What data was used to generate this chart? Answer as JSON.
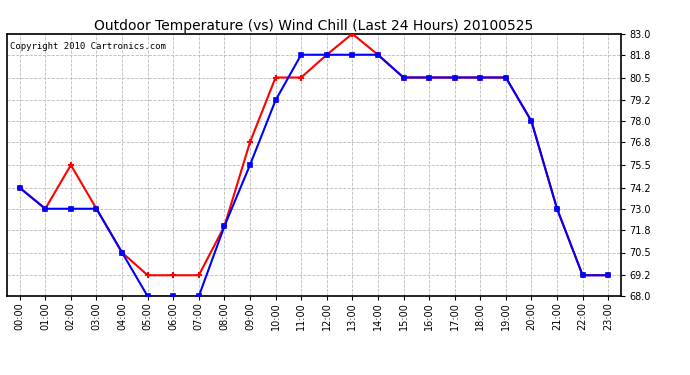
{
  "title": "Outdoor Temperature (vs) Wind Chill (Last 24 Hours) 20100525",
  "copyright": "Copyright 2010 Cartronics.com",
  "hours": [
    "00:00",
    "01:00",
    "02:00",
    "03:00",
    "04:00",
    "05:00",
    "06:00",
    "07:00",
    "08:00",
    "09:00",
    "10:00",
    "11:00",
    "12:00",
    "13:00",
    "14:00",
    "15:00",
    "16:00",
    "17:00",
    "18:00",
    "19:00",
    "20:00",
    "21:00",
    "22:00",
    "23:00"
  ],
  "outdoor_temp": [
    74.2,
    73.0,
    75.5,
    73.0,
    70.5,
    69.2,
    69.2,
    69.2,
    72.0,
    76.8,
    80.5,
    80.5,
    81.8,
    83.0,
    81.8,
    80.5,
    80.5,
    80.5,
    80.5,
    80.5,
    78.0,
    73.0,
    69.2,
    69.2
  ],
  "wind_chill": [
    74.2,
    73.0,
    73.0,
    73.0,
    70.5,
    68.0,
    68.0,
    68.0,
    72.0,
    75.5,
    79.2,
    81.8,
    81.8,
    81.8,
    81.8,
    80.5,
    80.5,
    80.5,
    80.5,
    80.5,
    78.0,
    73.0,
    69.2,
    69.2
  ],
  "temp_color": "#ff0000",
  "chill_color": "#0000ff",
  "ylim": [
    68.0,
    83.0
  ],
  "yticks": [
    68.0,
    69.2,
    70.5,
    71.8,
    73.0,
    74.2,
    75.5,
    76.8,
    78.0,
    79.2,
    80.5,
    81.8,
    83.0
  ],
  "background_color": "#ffffff",
  "plot_bg": "#ffffff",
  "grid_color": "#bbbbbb",
  "title_fontsize": 10,
  "copyright_fontsize": 6.5,
  "tick_fontsize": 7
}
